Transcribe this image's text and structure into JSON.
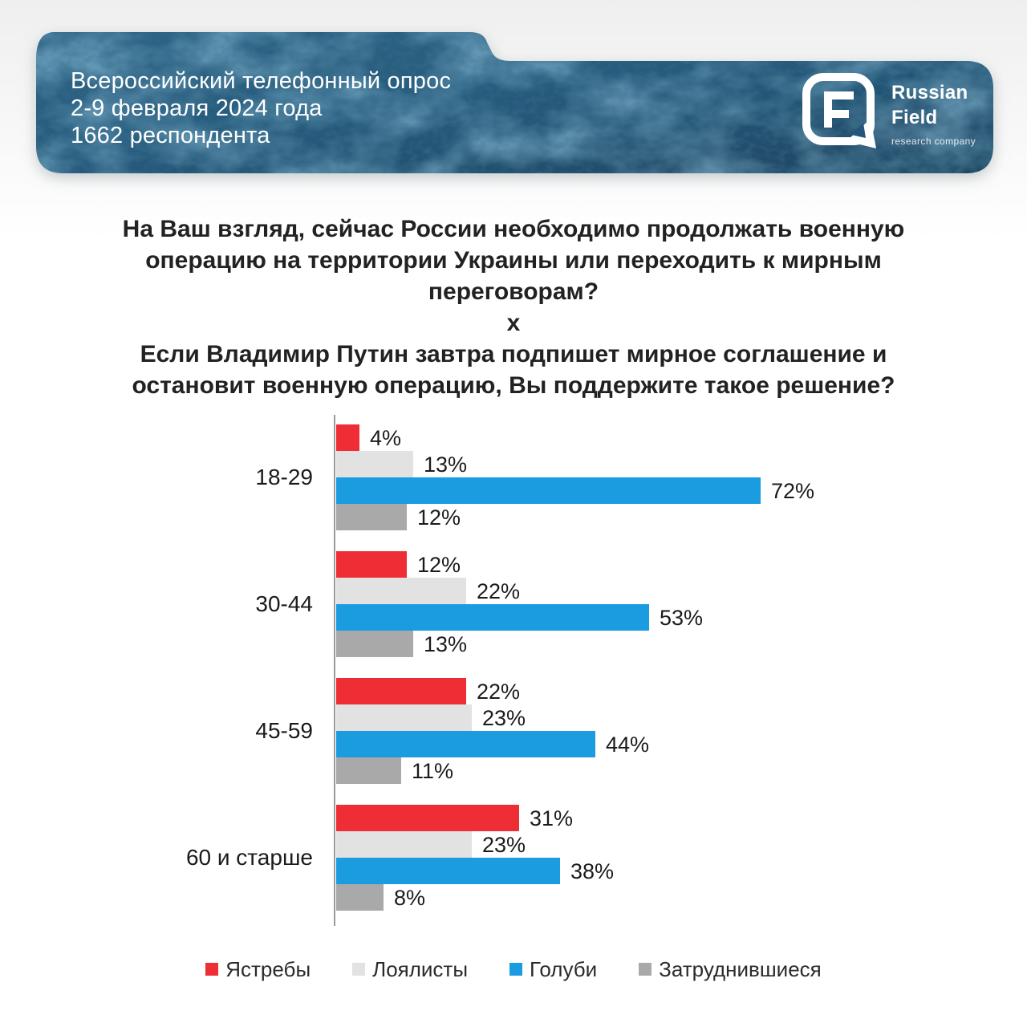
{
  "banner": {
    "line1": "Всероссийский телефонный опрос",
    "line2": "2-9 февраля 2024 года",
    "line3": "1662 респондента",
    "bg_color": "#265a7c",
    "text_color": "#ffffff",
    "logo": {
      "name_line1": "Russian",
      "name_line2": "Field",
      "subtitle": "research company"
    }
  },
  "question": {
    "part1": "На Ваш взгляд, сейчас России необходимо продолжать военную\nоперацию на территории Украины или переходить к мирным\nпереговорам?",
    "separator": "х",
    "part2": "Если Владимир Путин завтра подпишет мирное соглашение и\nостановит военную операцию, Вы поддержите такое решение?"
  },
  "chart_data": {
    "type": "bar",
    "orientation": "horizontal",
    "categories": [
      "18-29",
      "30-44",
      "45-59",
      "60 и старше"
    ],
    "series": [
      {
        "name": "Ястребы",
        "color": "#ee2d35",
        "values": [
          4,
          12,
          22,
          31
        ]
      },
      {
        "name": "Лоялисты",
        "color": "#e2e2e2",
        "values": [
          13,
          22,
          23,
          23
        ]
      },
      {
        "name": "Голуби",
        "color": "#1b9ce0",
        "values": [
          72,
          53,
          44,
          38
        ]
      },
      {
        "name": "Затруднившиеся",
        "color": "#a9a9a9",
        "values": [
          12,
          13,
          11,
          8
        ]
      }
    ],
    "value_suffix": "%",
    "xlim": [
      0,
      80
    ],
    "grid": false,
    "legend_position": "bottom",
    "value_labels": "outside-end"
  }
}
